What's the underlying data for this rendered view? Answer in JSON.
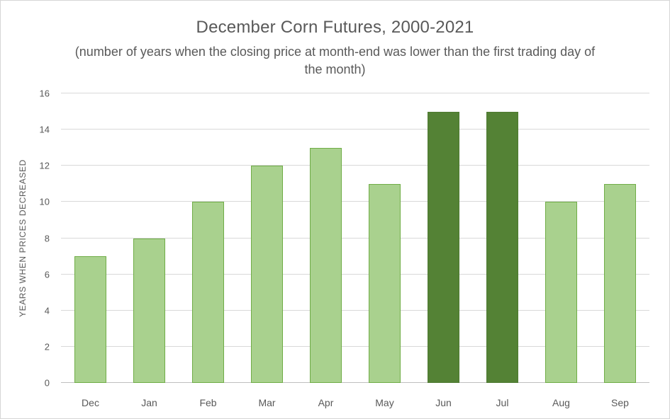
{
  "chart_data": {
    "type": "bar",
    "title": "December Corn Futures, 2000-2021",
    "subtitle": "(number of years when the closing price at month-end was lower than the first trading day of the month)",
    "ylabel": "YEARS WHEN PRICES DECREASED",
    "xlabel": "",
    "categories": [
      "Dec",
      "Jan",
      "Feb",
      "Mar",
      "Apr",
      "May",
      "Jun",
      "Jul",
      "Aug",
      "Sep"
    ],
    "values": [
      7,
      8,
      10,
      12,
      13,
      11,
      15,
      15,
      10,
      11
    ],
    "highlighted_categories": [
      "Jun",
      "Jul"
    ],
    "ylim": [
      0,
      16
    ],
    "ytick_step": 2,
    "grid": true,
    "legend": "none",
    "colors": {
      "bar_fill": "#a9d18e",
      "bar_border": "#70ad47",
      "bar_highlight_fill": "#548235",
      "bar_highlight_border": "#4e7a31",
      "text": "#595959",
      "gridline": "#d9d9d9",
      "baseline": "#bfbfbf",
      "frame_border": "#d6d6d6",
      "background": "#ffffff"
    }
  }
}
